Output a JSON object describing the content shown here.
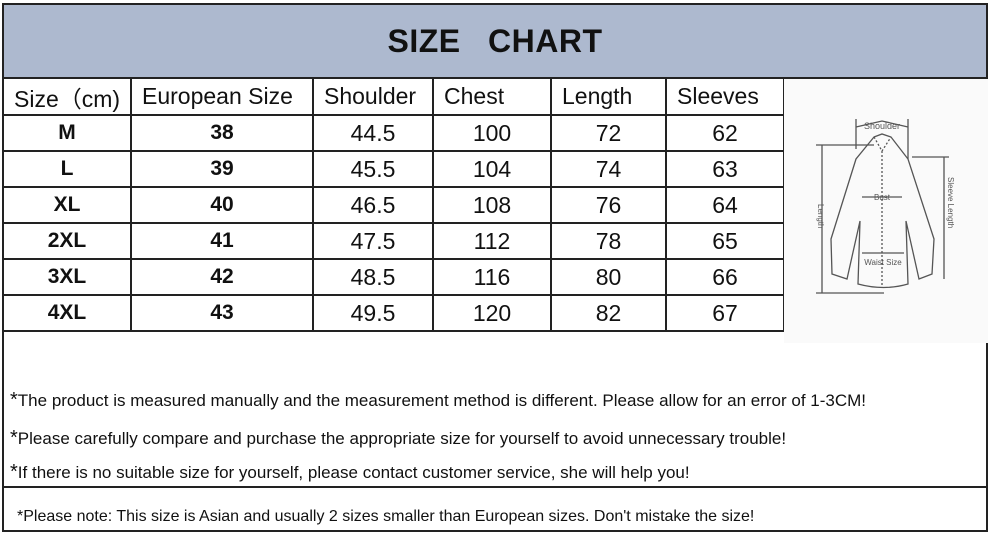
{
  "title": "SIZE CHART",
  "headers": [
    "Size（cm)",
    "European Size",
    "Shoulder",
    "Chest",
    "Length",
    "Sleeves"
  ],
  "rows": [
    [
      "M",
      "38",
      "44.5",
      "100",
      "72",
      "62"
    ],
    [
      "L",
      "39",
      "45.5",
      "104",
      "74",
      "63"
    ],
    [
      "XL",
      "40",
      "46.5",
      "108",
      "76",
      "64"
    ],
    [
      "2XL",
      "41",
      "47.5",
      "112",
      "78",
      "65"
    ],
    [
      "3XL",
      "42",
      "48.5",
      "116",
      "80",
      "66"
    ],
    [
      "4XL",
      "43",
      "49.5",
      "120",
      "82",
      "67"
    ]
  ],
  "diagram": {
    "shoulder": "Shoulder",
    "bust": "Bust",
    "length": "Length",
    "sleeve_length": "Sleeve Length",
    "waist": "Waist Size"
  },
  "notes": [
    "The product is measured manually and the measurement method is different. Please allow for an error of 1-3CM!",
    "Please carefully compare and purchase the appropriate size for yourself to avoid unnecessary trouble!",
    "If there is no suitable size for yourself, please contact customer service, she will help you!"
  ],
  "bottom_note": "*Please note: This size is Asian and usually 2 sizes smaller than  European sizes. Don't mistake the size!",
  "colors": {
    "title_bg": "#adb9cf"
  }
}
